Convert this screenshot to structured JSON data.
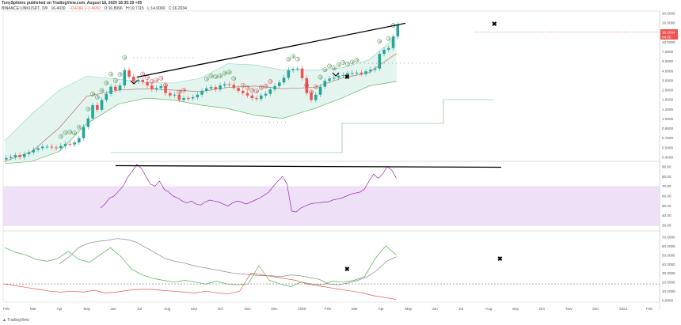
{
  "header": {
    "publisher_line": "TonySpilotro published on TradingView.com, August 18, 2020 18:35:29 +05",
    "symbol": "BINANCE:LINKUSDT, 1W",
    "ohlc": [
      "16.4030",
      "−0.4166 (−2.46%)",
      "O:16.8996",
      "H:19.7115",
      "L:14.0000",
      "C:16.2034"
    ]
  },
  "price_label": "16.2034",
  "price_label_2": "04:05",
  "brand": "TradingView",
  "colors": {
    "up": "#26a69a",
    "down": "#ef5350",
    "bb_fill": "#e4f4ef",
    "rsi_line": "#9c27b0",
    "rsi_band": "#ede0f7",
    "adx_line": "#888888",
    "plus_di": "#4caf50",
    "minus_di": "#ef5350",
    "trend": "#000000",
    "price_tag": "#ef5350"
  },
  "chart_data": [
    {
      "type": "candlestick",
      "pane": "price",
      "scale": "log",
      "y_ticks": [
        "20.0000",
        "16.0000",
        "12.0000",
        "10.0000",
        "7.0000",
        "5.0000",
        "4.0000",
        "3.0000",
        "2.0000",
        "1.6000",
        "1.2000",
        "1.0000",
        "0.9000",
        "0.7000",
        "0.5400",
        "0.4000"
      ],
      "ylim": [
        0.3,
        22
      ],
      "x_labels": [
        "Feb",
        "Mar",
        "Apr",
        "May",
        "Jun",
        "Jul",
        "Aug",
        "Sep",
        "Oct",
        "Nov",
        "Dec",
        "2020",
        "Feb",
        "Mar",
        "Apr",
        "May",
        "Jun",
        "Jul",
        "Aug",
        "Sep",
        "Oct",
        "Nov",
        "Dec",
        "2021",
        "Feb"
      ],
      "close": [
        0.33,
        0.34,
        0.36,
        0.34,
        0.37,
        0.39,
        0.42,
        0.44,
        0.46,
        0.46,
        0.45,
        0.44,
        0.47,
        0.5,
        0.49,
        0.52,
        0.59,
        0.82,
        1.05,
        1.55,
        1.35,
        1.8,
        2.15,
        2.65,
        2.4,
        2.75,
        4.3,
        3.55,
        3.1,
        3.25,
        3.05,
        2.75,
        2.45,
        2.55,
        2.7,
        2.2,
        2.05,
        2.1,
        1.8,
        1.9,
        1.88,
        1.95,
        2.1,
        2.35,
        2.52,
        2.62,
        2.45,
        2.75,
        2.85,
        2.8,
        2.55,
        2.35,
        2.2,
        2.05,
        1.9,
        1.85,
        2.05,
        2.15,
        2.45,
        2.7,
        3.0,
        3.45,
        4.3,
        4.45,
        4.5,
        3.4,
        2.2,
        1.8,
        2.1,
        2.65,
        3.15,
        3.35,
        3.45,
        3.65,
        3.72,
        3.92,
        3.95,
        4.0,
        3.85,
        4.15,
        4.35,
        4.5,
        6.9,
        7.8,
        8.2,
        11.5,
        16.2
      ],
      "bollinger": {
        "upper": [
          0.55,
          1.2,
          2.4,
          3.6,
          3.3,
          3.0,
          2.95,
          3.4,
          5.2,
          5.0,
          4.3,
          4.3,
          4.6,
          5.8,
          11.5
        ],
        "lower": [
          0.28,
          0.3,
          0.4,
          0.9,
          1.6,
          1.9,
          1.8,
          1.55,
          1.4,
          1.15,
          1.05,
          1.4,
          1.9,
          2.7,
          3.1
        ],
        "basis": [
          0.3,
          0.4,
          0.8,
          2.0,
          2.4,
          2.5,
          2.4,
          2.3,
          2.6,
          2.7,
          2.5,
          2.6,
          3.4,
          4.0,
          7.0
        ]
      },
      "td_counts_up": [
        "①",
        "②",
        "③",
        "④",
        "⑤",
        "⑥",
        "⑦",
        "⑧",
        "⑨"
      ],
      "td_counts_down": [
        "①",
        "②",
        "③",
        "④",
        "⑤",
        "⑥",
        "⑦",
        "⑧"
      ],
      "trendline": {
        "from": [
          29,
          3.5
        ],
        "to": [
          88,
          16.9
        ]
      }
    },
    {
      "type": "line",
      "pane": "rsi",
      "y_ticks": [
        "90.00",
        "80.00",
        "70.00",
        "60.00",
        "50.00",
        "40.00",
        "30.00"
      ],
      "ylim": [
        25,
        95
      ],
      "band": [
        30,
        70
      ],
      "values": [
        48,
        52,
        58,
        60,
        65,
        70,
        79,
        85,
        92,
        88,
        80,
        72,
        70,
        75,
        67,
        64,
        60,
        58,
        55,
        53,
        55,
        52,
        51,
        54,
        56,
        55,
        54,
        52,
        50,
        53,
        55,
        54,
        52,
        54,
        56,
        58,
        61,
        64,
        70,
        75,
        80,
        72,
        45,
        44,
        48,
        50,
        52,
        53,
        53,
        54,
        54,
        56,
        57,
        58,
        60,
        62,
        63,
        64,
        67,
        75,
        82,
        78,
        82,
        90,
        86,
        78
      ],
      "trendline": {
        "from": 88,
        "to": 88
      }
    },
    {
      "type": "line",
      "pane": "dmi",
      "y_ticks": [
        "70.0000",
        "60.0000",
        "50.0000",
        "40.0000",
        "30.0000",
        "20.0000",
        "10.0000",
        "0.0000"
      ],
      "ylim": [
        0,
        75
      ],
      "series": [
        {
          "name": "",
          "values": [
            42,
            50,
            60,
            65,
            67,
            68,
            70,
            69,
            66,
            60,
            54,
            48,
            45,
            43,
            40,
            38,
            36,
            34,
            32,
            31,
            30,
            29,
            29,
            28,
            30,
            29,
            27,
            25,
            20,
            19,
            21,
            24,
            28,
            35,
            45,
            50
          ]
        },
        {
          "name": "+DI",
          "values": [
            60,
            55,
            52,
            47,
            45,
            48,
            56,
            47,
            44,
            52,
            60,
            50,
            36,
            30,
            26,
            24,
            22,
            24,
            22,
            20,
            23,
            20,
            19,
            20,
            40,
            24,
            20,
            17,
            22,
            20,
            19,
            23,
            22,
            24,
            28,
            48,
            62,
            52
          ]
        },
        {
          "name": "−DI",
          "values": [
            20,
            18,
            16,
            14,
            12,
            11,
            12,
            11,
            13,
            10,
            11,
            13,
            14,
            14,
            13,
            12,
            11,
            10,
            12,
            10,
            9,
            12,
            32,
            30,
            28,
            26,
            24,
            20,
            18,
            16,
            14,
            12,
            10,
            7,
            5,
            3
          ]
        }
      ],
      "dashed_level": 20
    }
  ]
}
